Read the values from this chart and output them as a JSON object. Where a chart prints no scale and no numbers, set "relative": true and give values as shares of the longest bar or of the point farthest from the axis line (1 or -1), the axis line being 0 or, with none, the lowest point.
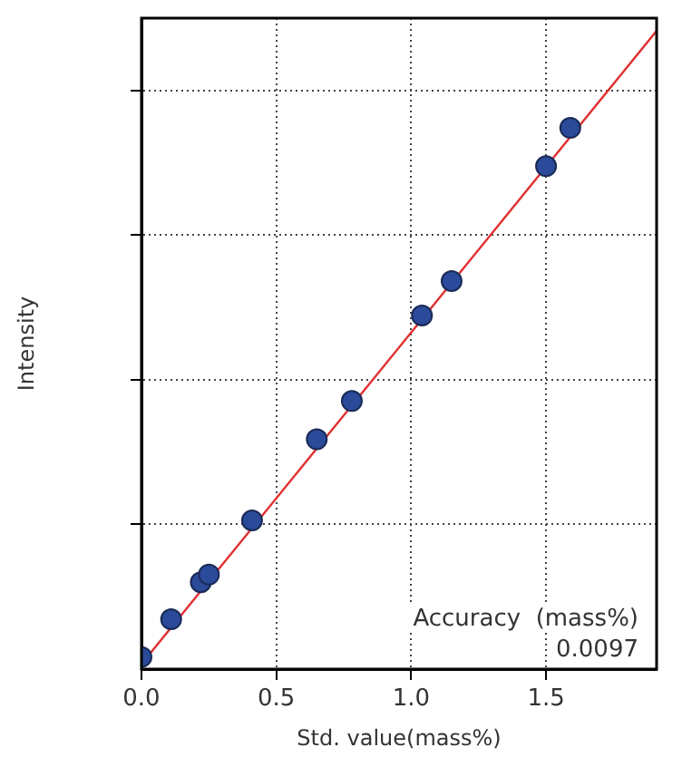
{
  "chart_data": {
    "type": "scatter",
    "relative": true,
    "xlabel": "Std. value(mass%)",
    "ylabel": "Intensity",
    "xlim": [
      0,
      1.91
    ],
    "xticks": [
      {
        "value": 0,
        "label": "0.0"
      },
      {
        "value": 0.5,
        "label": "0.5"
      },
      {
        "value": 1,
        "label": "1.0"
      },
      {
        "value": 1.5,
        "label": "1.5"
      }
    ],
    "grid": true,
    "legend": false,
    "marker": "circle",
    "series": [
      {
        "color": "#2b4a9a",
        "x": [
          0,
          0.11,
          0.22,
          0.25,
          0.41,
          0.65,
          0.78,
          1.04,
          1.15,
          1.5,
          1.59
        ],
        "values": [
          0.019,
          0.078,
          0.136,
          0.148,
          0.233,
          0.36,
          0.42,
          0.554,
          0.608,
          0.788,
          0.848
        ]
      },
      {
        "type": "line",
        "color": "#e03030",
        "marker": "none",
        "line_style": "solid",
        "x": [
          0,
          1.91
        ],
        "values": [
          0.008,
          1
        ]
      }
    ],
    "annotations": [
      "Accuracy  (mass%)",
      "0.0097"
    ]
  }
}
